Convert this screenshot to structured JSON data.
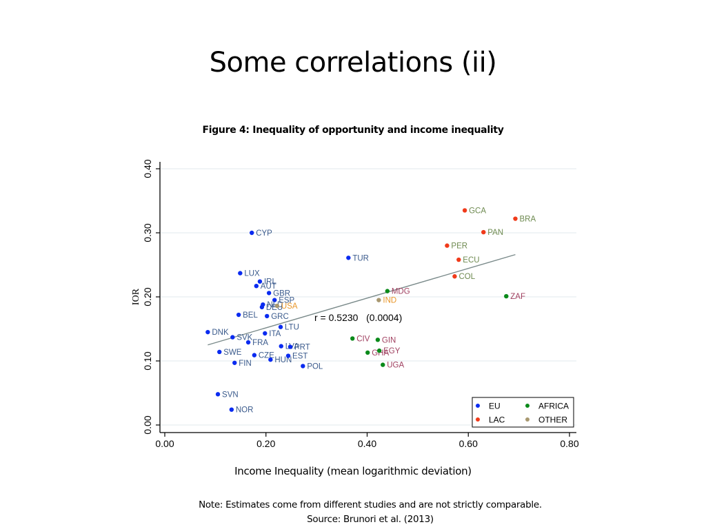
{
  "slide": {
    "title": "Some correlations (ii)",
    "note_line1": "Note: Estimates come from different studies and are not strictly comparable.",
    "note_line2": "Source: Brunori et al. (2013)"
  },
  "chart_data": {
    "type": "scatter",
    "title": "Figure 4: Inequality of opportunity and income inequality",
    "xlabel": "Income Inequality (mean logarithmic deviation)",
    "ylabel": "IOR",
    "xlim": [
      0.0,
      0.8
    ],
    "ylim": [
      0.0,
      0.4
    ],
    "xticks": [
      "0.00",
      "0.20",
      "0.40",
      "0.60",
      "0.80"
    ],
    "yticks": [
      "0.00",
      "0.10",
      "0.20",
      "0.30",
      "0.40"
    ],
    "grid": "horizontal",
    "legend_position": "bottom-right",
    "annotation": "r = 0.5230   (0.0004)",
    "groups": [
      {
        "name": "EU",
        "point_color": "#0a2bf0",
        "label_color": "#3a5a8c"
      },
      {
        "name": "AFRICA",
        "point_color": "#0a8a1a",
        "label_color": "#a04060"
      },
      {
        "name": "LAC",
        "point_color": "#f03a1a",
        "label_color": "#6e8a50"
      },
      {
        "name": "OTHER",
        "point_color": "#a89870",
        "label_color": "#e8962a"
      }
    ],
    "fit_line": {
      "x": [
        0.085,
        0.693
      ],
      "y": [
        0.125,
        0.266
      ],
      "color": "#7a8a8a"
    },
    "points": [
      {
        "label": "CYP",
        "group": "EU",
        "x": 0.172,
        "y": 0.3
      },
      {
        "label": "TUR",
        "group": "EU",
        "x": 0.363,
        "y": 0.261
      },
      {
        "label": "LUX",
        "group": "EU",
        "x": 0.149,
        "y": 0.237
      },
      {
        "label": "IRL",
        "group": "EU",
        "x": 0.188,
        "y": 0.224
      },
      {
        "label": "AUT",
        "group": "EU",
        "x": 0.181,
        "y": 0.217
      },
      {
        "label": "GBR",
        "group": "EU",
        "x": 0.206,
        "y": 0.206
      },
      {
        "label": "ESP",
        "group": "EU",
        "x": 0.217,
        "y": 0.195
      },
      {
        "label": "NLD",
        "group": "EU",
        "x": 0.194,
        "y": 0.188
      },
      {
        "label": "DEU",
        "group": "EU",
        "x": 0.192,
        "y": 0.184
      },
      {
        "label": "USA",
        "group": "OTHER",
        "x": 0.222,
        "y": 0.186
      },
      {
        "label": "BEL",
        "group": "EU",
        "x": 0.146,
        "y": 0.172
      },
      {
        "label": "GRC",
        "group": "EU",
        "x": 0.202,
        "y": 0.17
      },
      {
        "label": "LTU",
        "group": "EU",
        "x": 0.229,
        "y": 0.153
      },
      {
        "label": "ITA",
        "group": "EU",
        "x": 0.198,
        "y": 0.143
      },
      {
        "label": "DNK",
        "group": "EU",
        "x": 0.085,
        "y": 0.145
      },
      {
        "label": "SVK",
        "group": "EU",
        "x": 0.134,
        "y": 0.137
      },
      {
        "label": "FRA",
        "group": "EU",
        "x": 0.165,
        "y": 0.129
      },
      {
        "label": "LVA",
        "group": "EU",
        "x": 0.23,
        "y": 0.123
      },
      {
        "label": "PRT",
        "group": "EU",
        "x": 0.248,
        "y": 0.122
      },
      {
        "label": "SWE",
        "group": "EU",
        "x": 0.108,
        "y": 0.114
      },
      {
        "label": "CZE",
        "group": "EU",
        "x": 0.177,
        "y": 0.109
      },
      {
        "label": "HUN",
        "group": "EU",
        "x": 0.209,
        "y": 0.102
      },
      {
        "label": "EST",
        "group": "EU",
        "x": 0.244,
        "y": 0.108
      },
      {
        "label": "FIN",
        "group": "EU",
        "x": 0.138,
        "y": 0.097
      },
      {
        "label": "POL",
        "group": "EU",
        "x": 0.273,
        "y": 0.092
      },
      {
        "label": "SVN",
        "group": "EU",
        "x": 0.105,
        "y": 0.048
      },
      {
        "label": "NOR",
        "group": "EU",
        "x": 0.132,
        "y": 0.024
      },
      {
        "label": "GCA",
        "group": "LAC",
        "x": 0.593,
        "y": 0.335
      },
      {
        "label": "BRA",
        "group": "LAC",
        "x": 0.693,
        "y": 0.322
      },
      {
        "label": "PAN",
        "group": "LAC",
        "x": 0.63,
        "y": 0.301
      },
      {
        "label": "PER",
        "group": "LAC",
        "x": 0.558,
        "y": 0.28
      },
      {
        "label": "ECU",
        "group": "LAC",
        "x": 0.581,
        "y": 0.258
      },
      {
        "label": "COL",
        "group": "LAC",
        "x": 0.573,
        "y": 0.232
      },
      {
        "label": "MDG",
        "group": "AFRICA",
        "x": 0.44,
        "y": 0.209
      },
      {
        "label": "IND",
        "group": "OTHER",
        "x": 0.423,
        "y": 0.195
      },
      {
        "label": "ZAF",
        "group": "AFRICA",
        "x": 0.675,
        "y": 0.201
      },
      {
        "label": "CIV",
        "group": "AFRICA",
        "x": 0.371,
        "y": 0.135
      },
      {
        "label": "GIN",
        "group": "AFRICA",
        "x": 0.421,
        "y": 0.133
      },
      {
        "label": "GHA",
        "group": "AFRICA",
        "x": 0.401,
        "y": 0.113
      },
      {
        "label": "EGY",
        "group": "AFRICA",
        "x": 0.424,
        "y": 0.116
      },
      {
        "label": "UGA",
        "group": "AFRICA",
        "x": 0.431,
        "y": 0.094
      }
    ],
    "legend": [
      {
        "name": "EU",
        "color": "#0a2bf0"
      },
      {
        "name": "AFRICA",
        "color": "#0a8a1a"
      },
      {
        "name": "LAC",
        "color": "#f03a1a"
      },
      {
        "name": "OTHER",
        "color": "#a89870"
      }
    ]
  }
}
